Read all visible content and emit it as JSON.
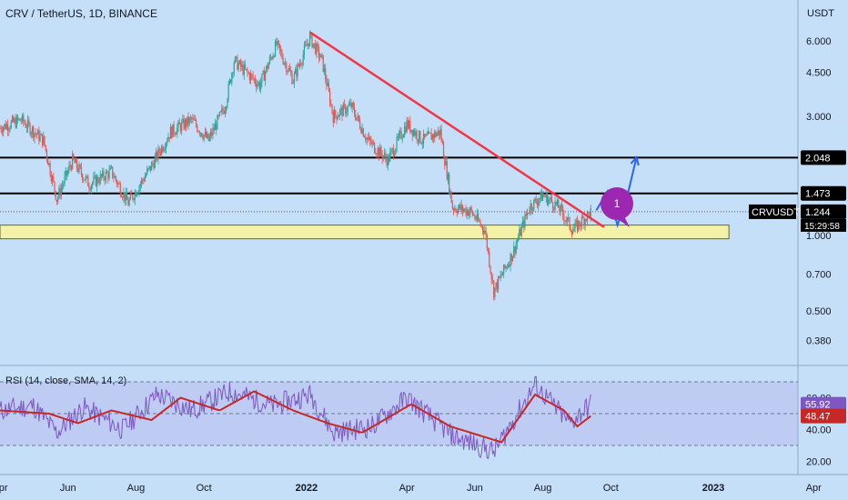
{
  "header": {
    "symbol_title": "CRV / TetherUS, 1D, BINANCE"
  },
  "price_scale": {
    "currency": "USDT"
  },
  "rsi_header": {
    "label": "RSI (14, close, SMA, 14, 2)"
  },
  "colors": {
    "background": "#c5dff8",
    "candle_up": "#26a69a",
    "candle_down": "#ef5350",
    "trendline": "#f23645",
    "zone_fill": "#f3f2a8",
    "projection": "#2962ff",
    "badge": "#9c27b0",
    "rsi_line": "#7e57c2",
    "rsi_ma": "#c62828"
  },
  "badge": {
    "label": "1"
  },
  "chart_data": {
    "type": "candlestick",
    "title": "CRV / TetherUS, 1D, BINANCE",
    "y_unit": "USDT",
    "y_scale": "log",
    "ylim": [
      0.3,
      8.2
    ],
    "xlim": [
      "2021-04-01",
      "2023-05-01"
    ],
    "x_tick_labels": [
      "Apr",
      "Jun",
      "Aug",
      "Oct",
      "2022",
      "Apr",
      "Jun",
      "Aug",
      "Oct",
      "2023",
      "Apr"
    ],
    "y_tick_labels": [
      "6.000",
      "4.500",
      "3.000",
      "1.000",
      "0.700",
      "0.500",
      "0.380"
    ],
    "price_keypoints": [
      [
        "2021-04-01",
        2.7
      ],
      [
        "2021-04-20",
        2.9
      ],
      [
        "2021-05-10",
        2.4
      ],
      [
        "2021-05-22",
        1.4
      ],
      [
        "2021-06-05",
        2.0
      ],
      [
        "2021-06-20",
        1.6
      ],
      [
        "2021-07-10",
        1.8
      ],
      [
        "2021-07-25",
        1.35
      ],
      [
        "2021-08-15",
        1.9
      ],
      [
        "2021-09-01",
        2.6
      ],
      [
        "2021-09-20",
        2.9
      ],
      [
        "2021-10-05",
        2.4
      ],
      [
        "2021-10-20",
        3.3
      ],
      [
        "2021-10-28",
        5.0
      ],
      [
        "2021-11-20",
        4.0
      ],
      [
        "2021-12-05",
        5.8
      ],
      [
        "2021-12-20",
        4.2
      ],
      [
        "2022-01-04",
        6.2
      ],
      [
        "2022-01-15",
        5.0
      ],
      [
        "2022-01-25",
        3.0
      ],
      [
        "2022-02-10",
        3.3
      ],
      [
        "2022-02-25",
        2.4
      ],
      [
        "2022-03-15",
        2.0
      ],
      [
        "2022-04-01",
        2.8
      ],
      [
        "2022-04-15",
        2.4
      ],
      [
        "2022-05-01",
        2.6
      ],
      [
        "2022-05-12",
        1.3
      ],
      [
        "2022-05-28",
        1.25
      ],
      [
        "2022-06-10",
        1.05
      ],
      [
        "2022-06-18",
        0.6
      ],
      [
        "2022-07-05",
        0.85
      ],
      [
        "2022-07-20",
        1.3
      ],
      [
        "2022-08-01",
        1.45
      ],
      [
        "2022-08-15",
        1.3
      ],
      [
        "2022-08-28",
        1.05
      ],
      [
        "2022-09-13",
        1.244
      ]
    ],
    "last_price": 1.244,
    "price_labels": [
      {
        "text": "2.048",
        "value": 2.048
      },
      {
        "text": "1.473",
        "value": 1.473
      },
      {
        "text": "1.244",
        "value": 1.244
      }
    ],
    "symbol_label": "CRVUSDT",
    "countdown": "15:29:58",
    "annotations": {
      "horizontal_lines": [
        2.048,
        1.473
      ],
      "support_zone": {
        "from": "2021-04-01",
        "to": "2023-01-15",
        "low": 0.97,
        "high": 1.1
      },
      "trendline": {
        "from": [
          "2022-01-04",
          6.5
        ],
        "to": [
          "2022-09-25",
          1.08
        ]
      },
      "projection_path": [
        [
          "2022-09-18",
          1.26
        ],
        [
          "2022-09-28",
          1.5
        ],
        [
          "2022-10-07",
          1.1
        ],
        [
          "2022-10-16",
          1.45
        ],
        [
          "2022-10-24",
          2.05
        ]
      ]
    },
    "rsi": {
      "label": "RSI (14, close, SMA, 14, 2)",
      "ylim": [
        15,
        85
      ],
      "levels": [
        70,
        50,
        30
      ],
      "y_tick_labels": [
        "60.00",
        "40.00",
        "20.00"
      ],
      "value_labels": [
        {
          "text": "55.92",
          "value": 55.92
        },
        {
          "text": "48.47",
          "value": 48.47
        }
      ],
      "rsi_keypoints": [
        [
          "2021-04-01",
          52
        ],
        [
          "2021-05-01",
          55
        ],
        [
          "2021-05-22",
          38
        ],
        [
          "2021-06-15",
          54
        ],
        [
          "2021-07-20",
          40
        ],
        [
          "2021-08-20",
          62
        ],
        [
          "2021-09-20",
          52
        ],
        [
          "2021-10-25",
          64
        ],
        [
          "2021-12-01",
          55
        ],
        [
          "2022-01-05",
          62
        ],
        [
          "2022-01-25",
          38
        ],
        [
          "2022-03-01",
          42
        ],
        [
          "2022-04-01",
          60
        ],
        [
          "2022-05-12",
          36
        ],
        [
          "2022-06-18",
          26
        ],
        [
          "2022-07-25",
          68
        ],
        [
          "2022-08-25",
          44
        ],
        [
          "2022-09-13",
          55.92
        ]
      ],
      "ma_keypoints": [
        [
          "2021-04-01",
          52
        ],
        [
          "2021-05-15",
          50
        ],
        [
          "2021-06-10",
          44
        ],
        [
          "2021-07-10",
          52
        ],
        [
          "2021-08-15",
          46
        ],
        [
          "2021-09-10",
          60
        ],
        [
          "2021-10-15",
          52
        ],
        [
          "2021-11-15",
          64
        ],
        [
          "2021-12-20",
          52
        ],
        [
          "2022-01-20",
          44
        ],
        [
          "2022-02-20",
          38
        ],
        [
          "2022-04-05",
          56
        ],
        [
          "2022-05-10",
          42
        ],
        [
          "2022-06-25",
          32
        ],
        [
          "2022-07-25",
          62
        ],
        [
          "2022-08-20",
          52
        ],
        [
          "2022-09-01",
          42
        ],
        [
          "2022-09-13",
          48.47
        ]
      ]
    }
  }
}
